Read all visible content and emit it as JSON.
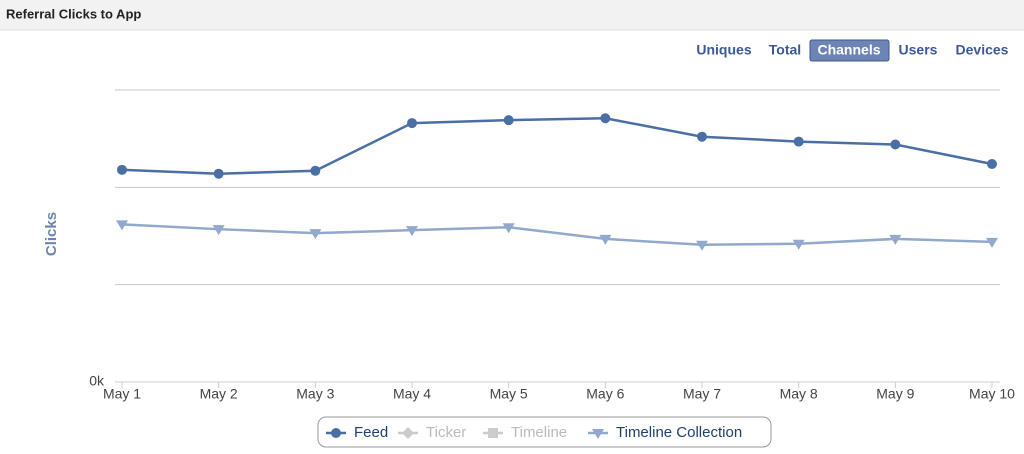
{
  "header": {
    "title": "Referral Clicks to App"
  },
  "tabs": {
    "items": [
      "Uniques",
      "Total",
      "Channels",
      "Users",
      "Devices"
    ],
    "active": 2
  },
  "chart_data": {
    "type": "line",
    "y_axis_label": "Clicks",
    "categories": [
      "May 1",
      "May 2",
      "May 3",
      "May 4",
      "May 5",
      "May 6",
      "May 7",
      "May 8",
      "May 9",
      "May 10"
    ],
    "ylim": [
      0,
      3
    ],
    "yticks": [
      {
        "value": 0,
        "label": "0k"
      },
      {
        "value": 1,
        "label": null
      },
      {
        "value": 2,
        "label": null
      },
      {
        "value": 3,
        "label": null
      }
    ],
    "grid": true,
    "legend": "bottom",
    "series": [
      {
        "name": "Feed",
        "color": "#4a6fa5",
        "marker": "circle",
        "visible": true,
        "values": [
          2.18,
          2.14,
          2.17,
          2.66,
          2.69,
          2.71,
          2.52,
          2.47,
          2.44,
          2.24
        ]
      },
      {
        "name": "Ticker",
        "color": "#cccccc",
        "marker": "diamond",
        "visible": false,
        "values": [
          null,
          null,
          null,
          null,
          null,
          null,
          null,
          null,
          null,
          null
        ]
      },
      {
        "name": "Timeline",
        "color": "#cccccc",
        "marker": "square",
        "visible": false,
        "values": [
          null,
          null,
          null,
          null,
          null,
          null,
          null,
          null,
          null,
          null
        ]
      },
      {
        "name": "Timeline Collection",
        "color": "#92a8cc",
        "marker": "triangle-down",
        "visible": true,
        "values": [
          1.62,
          1.57,
          1.53,
          1.56,
          1.59,
          1.47,
          1.41,
          1.42,
          1.47,
          1.44
        ]
      }
    ]
  }
}
